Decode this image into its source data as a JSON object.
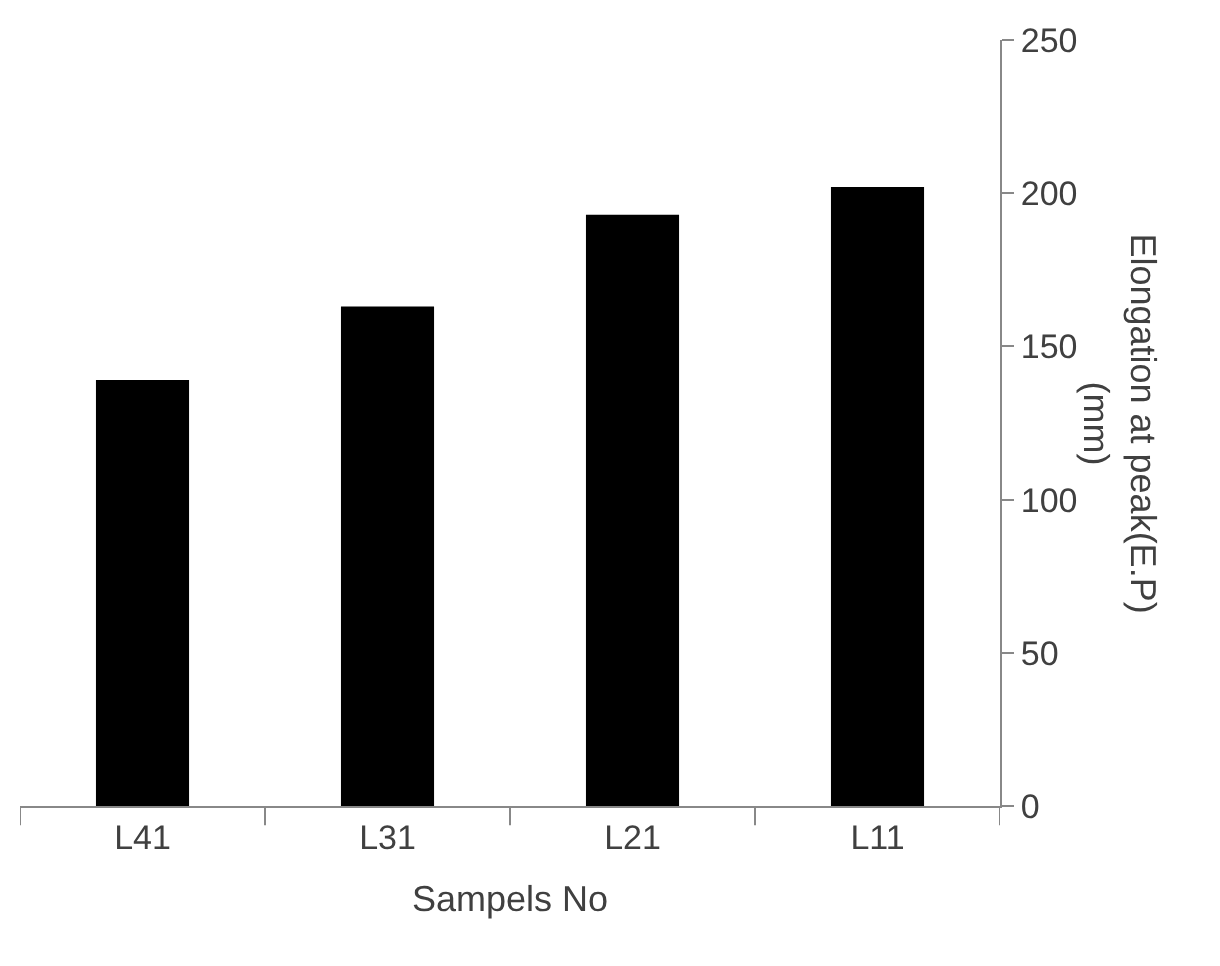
{
  "chart_data": {
    "type": "bar",
    "xlabel": "Sampels No",
    "ylabel": "Elongation at peak(E.P)\n(mm)",
    "categories": [
      "L41",
      "L31",
      "L21",
      "L11"
    ],
    "series": [
      {
        "color": "#000000",
        "values": [
          139,
          163,
          193,
          202
        ]
      }
    ],
    "ylim": [
      0,
      250
    ],
    "yticks": [
      0,
      50,
      100,
      150,
      200,
      250
    ]
  }
}
